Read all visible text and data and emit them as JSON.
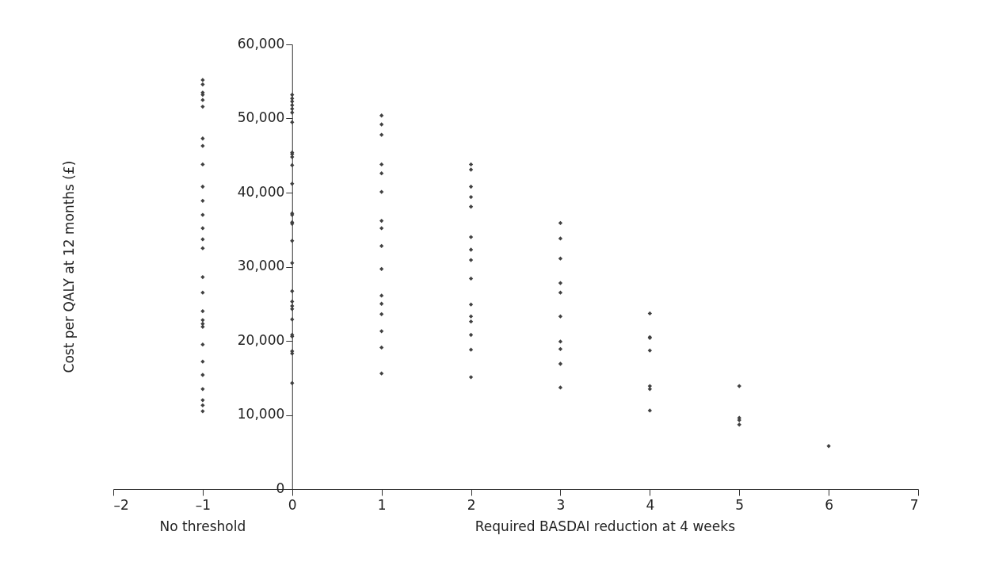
{
  "chart_data": {
    "type": "scatter",
    "xlabel": "Required BASDAI reduction at 4 weeks",
    "ylabel": "Cost per QALY at 12 months (£)",
    "annotations": [
      "No threshold"
    ],
    "marker": "diamond",
    "grid": false,
    "legend": false,
    "xlim": [
      -2,
      7
    ],
    "xticks": [
      {
        "value": -2,
        "label": "–2"
      },
      {
        "value": -1,
        "label": "–1"
      },
      0,
      1,
      2,
      3,
      4,
      5,
      6,
      7
    ],
    "ylim": [
      0,
      60000
    ],
    "yticks": [
      0,
      {
        "value": 10000,
        "label": "10,000"
      },
      {
        "value": 20000,
        "label": "20,000"
      },
      {
        "value": 30000,
        "label": "30,000"
      },
      {
        "value": 40000,
        "label": "40,000"
      },
      {
        "value": 50000,
        "label": "50,000"
      },
      {
        "value": 60000,
        "label": "60,000"
      }
    ],
    "series": [
      {
        "color": "#404040",
        "x": [
          -1,
          -1,
          -1,
          -1,
          -1,
          -1,
          -1,
          -1,
          -1,
          -1,
          -1,
          -1,
          -1,
          -1,
          -1,
          -1,
          -1,
          -1,
          -1,
          -1,
          -1,
          -1,
          -1,
          -1,
          -1,
          -1,
          -1,
          -1,
          0,
          0,
          0,
          0,
          0,
          0,
          0,
          0,
          0,
          0,
          0,
          0,
          0,
          0,
          0,
          0,
          0,
          0,
          0,
          0,
          0,
          0,
          0,
          0,
          0,
          0,
          0,
          0,
          1,
          1,
          1,
          1,
          1,
          1,
          1,
          1,
          1,
          1,
          1,
          1,
          1,
          1,
          1,
          1,
          2,
          2,
          2,
          2,
          2,
          2,
          2,
          2,
          2,
          2,
          2,
          2,
          2,
          2,
          2,
          3,
          3,
          3,
          3,
          3,
          3,
          3,
          3,
          3,
          3,
          4,
          4,
          4,
          4,
          4,
          4,
          4,
          5,
          5,
          5,
          5,
          6
        ],
        "values": [
          55200,
          54600,
          53500,
          53200,
          52500,
          51600,
          47300,
          46300,
          43800,
          40800,
          38900,
          37000,
          35200,
          33700,
          32500,
          28600,
          26500,
          24000,
          22800,
          22300,
          21900,
          19500,
          17200,
          15400,
          13500,
          12000,
          11300,
          10500,
          53200,
          52700,
          52300,
          51800,
          51300,
          50800,
          49500,
          45400,
          45200,
          44800,
          43700,
          41200,
          37200,
          37000,
          36000,
          35800,
          33500,
          30500,
          26700,
          25300,
          24700,
          24300,
          22900,
          20800,
          20600,
          18600,
          18300,
          14300,
          50400,
          49200,
          47800,
          43800,
          42600,
          40100,
          36200,
          35200,
          32800,
          29700,
          26100,
          25000,
          23600,
          21300,
          19100,
          15600,
          43800,
          43100,
          40800,
          39400,
          38100,
          34000,
          32300,
          30900,
          28400,
          24900,
          23300,
          22600,
          20800,
          18800,
          15100,
          35900,
          33800,
          31100,
          27800,
          26500,
          23300,
          19900,
          18900,
          16900,
          13700,
          23700,
          20500,
          20400,
          18700,
          13900,
          13500,
          10600,
          13900,
          9600,
          9300,
          8700,
          5800
        ]
      }
    ]
  }
}
